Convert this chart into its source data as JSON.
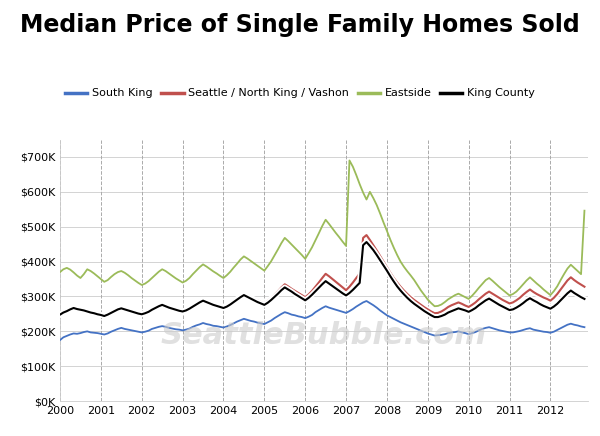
{
  "title": "Median Price of Single Family Homes Sold",
  "title_fontsize": 17,
  "background_color": "#ffffff",
  "watermark": "SeattleBubble.com",
  "ylim": [
    0,
    750000
  ],
  "yticks": [
    0,
    100000,
    200000,
    300000,
    400000,
    500000,
    600000,
    700000
  ],
  "ytick_labels": [
    "$0K",
    "$100K",
    "$200K",
    "$300K",
    "$400K",
    "$500K",
    "$600K",
    "$700K"
  ],
  "xlim_start": 2000.0,
  "xlim_end": 2012.92,
  "xtick_years": [
    2000,
    2001,
    2002,
    2003,
    2004,
    2005,
    2006,
    2007,
    2008,
    2009,
    2010,
    2011,
    2012
  ],
  "colors": {
    "south_king": "#4472c4",
    "seattle": "#c0504d",
    "eastside": "#9bbb59",
    "king_county": "#000000"
  },
  "legend": [
    {
      "label": "South King",
      "color": "#4472c4"
    },
    {
      "label": "Seattle / North King / Vashon",
      "color": "#c0504d"
    },
    {
      "label": "Eastside",
      "color": "#9bbb59"
    },
    {
      "label": "King County",
      "color": "#000000"
    }
  ],
  "south_king": {
    "dates": [
      2000.0,
      2000.083,
      2000.167,
      2000.25,
      2000.333,
      2000.417,
      2000.5,
      2000.583,
      2000.667,
      2000.75,
      2000.833,
      2000.917,
      2001.0,
      2001.083,
      2001.167,
      2001.25,
      2001.333,
      2001.417,
      2001.5,
      2001.583,
      2001.667,
      2001.75,
      2001.833,
      2001.917,
      2002.0,
      2002.083,
      2002.167,
      2002.25,
      2002.333,
      2002.417,
      2002.5,
      2002.583,
      2002.667,
      2002.75,
      2002.833,
      2002.917,
      2003.0,
      2003.083,
      2003.167,
      2003.25,
      2003.333,
      2003.417,
      2003.5,
      2003.583,
      2003.667,
      2003.75,
      2003.833,
      2003.917,
      2004.0,
      2004.083,
      2004.167,
      2004.25,
      2004.333,
      2004.417,
      2004.5,
      2004.583,
      2004.667,
      2004.75,
      2004.833,
      2004.917,
      2005.0,
      2005.083,
      2005.167,
      2005.25,
      2005.333,
      2005.417,
      2005.5,
      2005.583,
      2005.667,
      2005.75,
      2005.833,
      2005.917,
      2006.0,
      2006.083,
      2006.167,
      2006.25,
      2006.333,
      2006.417,
      2006.5,
      2006.583,
      2006.667,
      2006.75,
      2006.833,
      2006.917,
      2007.0,
      2007.083,
      2007.167,
      2007.25,
      2007.333,
      2007.417,
      2007.5,
      2007.583,
      2007.667,
      2007.75,
      2007.833,
      2007.917,
      2008.0,
      2008.083,
      2008.167,
      2008.25,
      2008.333,
      2008.417,
      2008.5,
      2008.583,
      2008.667,
      2008.75,
      2008.833,
      2008.917,
      2009.0,
      2009.083,
      2009.167,
      2009.25,
      2009.333,
      2009.417,
      2009.5,
      2009.583,
      2009.667,
      2009.75,
      2009.833,
      2009.917,
      2010.0,
      2010.083,
      2010.167,
      2010.25,
      2010.333,
      2010.417,
      2010.5,
      2010.583,
      2010.667,
      2010.75,
      2010.833,
      2010.917,
      2011.0,
      2011.083,
      2011.167,
      2011.25,
      2011.333,
      2011.417,
      2011.5,
      2011.583,
      2011.667,
      2011.75,
      2011.833,
      2011.917,
      2012.0,
      2012.083,
      2012.167,
      2012.25,
      2012.333,
      2012.417,
      2012.5,
      2012.583,
      2012.667,
      2012.75,
      2012.833
    ],
    "values": [
      175000,
      183000,
      187000,
      191000,
      194000,
      193000,
      195000,
      198000,
      200000,
      197000,
      196000,
      195000,
      193000,
      191000,
      194000,
      199000,
      203000,
      207000,
      210000,
      207000,
      205000,
      203000,
      201000,
      199000,
      197000,
      199000,
      202000,
      207000,
      210000,
      213000,
      215000,
      213000,
      210000,
      208000,
      206000,
      205000,
      203000,
      205000,
      208000,
      213000,
      217000,
      220000,
      224000,
      221000,
      219000,
      216000,
      215000,
      213000,
      211000,
      214000,
      218000,
      223000,
      228000,
      232000,
      236000,
      233000,
      230000,
      228000,
      225000,
      223000,
      221000,
      226000,
      231000,
      238000,
      244000,
      250000,
      255000,
      252000,
      248000,
      246000,
      243000,
      241000,
      238000,
      242000,
      247000,
      255000,
      261000,
      267000,
      272000,
      268000,
      265000,
      262000,
      259000,
      256000,
      253000,
      258000,
      264000,
      271000,
      277000,
      283000,
      287000,
      281000,
      275000,
      268000,
      260000,
      253000,
      246000,
      241000,
      236000,
      231000,
      226000,
      222000,
      218000,
      214000,
      210000,
      206000,
      202000,
      198000,
      194000,
      191000,
      188000,
      189000,
      190000,
      192000,
      195000,
      197000,
      198000,
      200000,
      197000,
      195000,
      192000,
      195000,
      198000,
      203000,
      207000,
      210000,
      212000,
      209000,
      206000,
      203000,
      201000,
      199000,
      197000,
      197000,
      199000,
      201000,
      204000,
      207000,
      209000,
      205000,
      203000,
      201000,
      199000,
      198000,
      196000,
      199000,
      204000,
      209000,
      214000,
      219000,
      222000,
      219000,
      217000,
      214000,
      212000
    ]
  },
  "seattle": {
    "dates": [
      2000.0,
      2000.083,
      2000.167,
      2000.25,
      2000.333,
      2000.417,
      2000.5,
      2000.583,
      2000.667,
      2000.75,
      2000.833,
      2000.917,
      2001.0,
      2001.083,
      2001.167,
      2001.25,
      2001.333,
      2001.417,
      2001.5,
      2001.583,
      2001.667,
      2001.75,
      2001.833,
      2001.917,
      2002.0,
      2002.083,
      2002.167,
      2002.25,
      2002.333,
      2002.417,
      2002.5,
      2002.583,
      2002.667,
      2002.75,
      2002.833,
      2002.917,
      2003.0,
      2003.083,
      2003.167,
      2003.25,
      2003.333,
      2003.417,
      2003.5,
      2003.583,
      2003.667,
      2003.75,
      2003.833,
      2003.917,
      2004.0,
      2004.083,
      2004.167,
      2004.25,
      2004.333,
      2004.417,
      2004.5,
      2004.583,
      2004.667,
      2004.75,
      2004.833,
      2004.917,
      2005.0,
      2005.083,
      2005.167,
      2005.25,
      2005.333,
      2005.417,
      2005.5,
      2005.583,
      2005.667,
      2005.75,
      2005.833,
      2005.917,
      2006.0,
      2006.083,
      2006.167,
      2006.25,
      2006.333,
      2006.417,
      2006.5,
      2006.583,
      2006.667,
      2006.75,
      2006.833,
      2006.917,
      2007.0,
      2007.083,
      2007.167,
      2007.25,
      2007.333,
      2007.417,
      2007.5,
      2007.583,
      2007.667,
      2007.75,
      2007.833,
      2007.917,
      2008.0,
      2008.083,
      2008.167,
      2008.25,
      2008.333,
      2008.417,
      2008.5,
      2008.583,
      2008.667,
      2008.75,
      2008.833,
      2008.917,
      2009.0,
      2009.083,
      2009.167,
      2009.25,
      2009.333,
      2009.417,
      2009.5,
      2009.583,
      2009.667,
      2009.75,
      2009.833,
      2009.917,
      2010.0,
      2010.083,
      2010.167,
      2010.25,
      2010.333,
      2010.417,
      2010.5,
      2010.583,
      2010.667,
      2010.75,
      2010.833,
      2010.917,
      2011.0,
      2011.083,
      2011.167,
      2011.25,
      2011.333,
      2011.417,
      2011.5,
      2011.583,
      2011.667,
      2011.75,
      2011.833,
      2011.917,
      2012.0,
      2012.083,
      2012.167,
      2012.25,
      2012.333,
      2012.417,
      2012.5,
      2012.583,
      2012.667,
      2012.75,
      2012.833
    ],
    "values": [
      248000,
      255000,
      260000,
      265000,
      268000,
      265000,
      262000,
      260000,
      257000,
      254000,
      252000,
      249000,
      247000,
      244000,
      248000,
      253000,
      258000,
      263000,
      266000,
      263000,
      261000,
      258000,
      255000,
      252000,
      250000,
      253000,
      257000,
      263000,
      268000,
      273000,
      276000,
      272000,
      269000,
      266000,
      263000,
      260000,
      258000,
      261000,
      265000,
      272000,
      278000,
      284000,
      289000,
      285000,
      281000,
      277000,
      274000,
      271000,
      268000,
      272000,
      278000,
      286000,
      293000,
      301000,
      307000,
      302000,
      297000,
      292000,
      288000,
      284000,
      280000,
      287000,
      295000,
      305000,
      315000,
      326000,
      335000,
      329000,
      322000,
      316000,
      310000,
      304000,
      298000,
      306000,
      316000,
      328000,
      340000,
      353000,
      365000,
      358000,
      350000,
      342000,
      334000,
      326000,
      318000,
      328000,
      340000,
      353000,
      366000,
      468000,
      476000,
      462000,
      447000,
      432000,
      416000,
      400000,
      384000,
      368000,
      353000,
      340000,
      328000,
      317000,
      307000,
      298000,
      290000,
      283000,
      276000,
      269000,
      263000,
      257000,
      252000,
      253000,
      257000,
      263000,
      270000,
      275000,
      279000,
      283000,
      279000,
      274000,
      270000,
      276000,
      283000,
      292000,
      300000,
      308000,
      314000,
      308000,
      302000,
      296000,
      290000,
      285000,
      280000,
      283000,
      289000,
      296000,
      305000,
      313000,
      320000,
      313000,
      307000,
      302000,
      297000,
      293000,
      288000,
      296000,
      307000,
      320000,
      333000,
      346000,
      355000,
      347000,
      340000,
      334000,
      328000
    ]
  },
  "eastside": {
    "dates": [
      2000.0,
      2000.083,
      2000.167,
      2000.25,
      2000.333,
      2000.417,
      2000.5,
      2000.583,
      2000.667,
      2000.75,
      2000.833,
      2000.917,
      2001.0,
      2001.083,
      2001.167,
      2001.25,
      2001.333,
      2001.417,
      2001.5,
      2001.583,
      2001.667,
      2001.75,
      2001.833,
      2001.917,
      2002.0,
      2002.083,
      2002.167,
      2002.25,
      2002.333,
      2002.417,
      2002.5,
      2002.583,
      2002.667,
      2002.75,
      2002.833,
      2002.917,
      2003.0,
      2003.083,
      2003.167,
      2003.25,
      2003.333,
      2003.417,
      2003.5,
      2003.583,
      2003.667,
      2003.75,
      2003.833,
      2003.917,
      2004.0,
      2004.083,
      2004.167,
      2004.25,
      2004.333,
      2004.417,
      2004.5,
      2004.583,
      2004.667,
      2004.75,
      2004.833,
      2004.917,
      2005.0,
      2005.083,
      2005.167,
      2005.25,
      2005.333,
      2005.417,
      2005.5,
      2005.583,
      2005.667,
      2005.75,
      2005.833,
      2005.917,
      2006.0,
      2006.083,
      2006.167,
      2006.25,
      2006.333,
      2006.417,
      2006.5,
      2006.583,
      2006.667,
      2006.75,
      2006.833,
      2006.917,
      2007.0,
      2007.083,
      2007.167,
      2007.25,
      2007.333,
      2007.417,
      2007.5,
      2007.583,
      2007.667,
      2007.75,
      2007.833,
      2007.917,
      2008.0,
      2008.083,
      2008.167,
      2008.25,
      2008.333,
      2008.417,
      2008.5,
      2008.583,
      2008.667,
      2008.75,
      2008.833,
      2008.917,
      2009.0,
      2009.083,
      2009.167,
      2009.25,
      2009.333,
      2009.417,
      2009.5,
      2009.583,
      2009.667,
      2009.75,
      2009.833,
      2009.917,
      2010.0,
      2010.083,
      2010.167,
      2010.25,
      2010.333,
      2010.417,
      2010.5,
      2010.583,
      2010.667,
      2010.75,
      2010.833,
      2010.917,
      2011.0,
      2011.083,
      2011.167,
      2011.25,
      2011.333,
      2011.417,
      2011.5,
      2011.583,
      2011.667,
      2011.75,
      2011.833,
      2011.917,
      2012.0,
      2012.083,
      2012.167,
      2012.25,
      2012.333,
      2012.417,
      2012.5,
      2012.583,
      2012.667,
      2012.75,
      2012.833
    ],
    "values": [
      370000,
      378000,
      382000,
      377000,
      369000,
      360000,
      353000,
      364000,
      378000,
      373000,
      366000,
      358000,
      350000,
      342000,
      347000,
      356000,
      364000,
      370000,
      373000,
      368000,
      361000,
      353000,
      346000,
      339000,
      333000,
      337000,
      344000,
      353000,
      362000,
      371000,
      378000,
      373000,
      366000,
      359000,
      352000,
      346000,
      340000,
      345000,
      353000,
      364000,
      374000,
      384000,
      392000,
      386000,
      379000,
      372000,
      366000,
      359000,
      353000,
      361000,
      371000,
      383000,
      394000,
      406000,
      415000,
      409000,
      402000,
      395000,
      388000,
      381000,
      374000,
      387000,
      401000,
      418000,
      435000,
      453000,
      468000,
      459000,
      449000,
      439000,
      429000,
      419000,
      408000,
      424000,
      441000,
      461000,
      481000,
      502000,
      520000,
      508000,
      495000,
      482000,
      470000,
      457000,
      445000,
      690000,
      672000,
      648000,
      622000,
      598000,
      578000,
      600000,
      582000,
      562000,
      538000,
      512000,
      488000,
      463000,
      440000,
      419000,
      400000,
      385000,
      372000,
      360000,
      347000,
      332000,
      317000,
      304000,
      291000,
      281000,
      272000,
      273000,
      277000,
      284000,
      292000,
      298000,
      304000,
      308000,
      303000,
      298000,
      293000,
      302000,
      313000,
      325000,
      336000,
      347000,
      353000,
      345000,
      336000,
      327000,
      319000,
      311000,
      303000,
      307000,
      314000,
      324000,
      335000,
      346000,
      355000,
      346000,
      337000,
      329000,
      320000,
      312000,
      304000,
      315000,
      329000,
      347000,
      364000,
      380000,
      391000,
      382000,
      373000,
      364000,
      546000
    ]
  },
  "king_county": {
    "dates": [
      2000.0,
      2000.083,
      2000.167,
      2000.25,
      2000.333,
      2000.417,
      2000.5,
      2000.583,
      2000.667,
      2000.75,
      2000.833,
      2000.917,
      2001.0,
      2001.083,
      2001.167,
      2001.25,
      2001.333,
      2001.417,
      2001.5,
      2001.583,
      2001.667,
      2001.75,
      2001.833,
      2001.917,
      2002.0,
      2002.083,
      2002.167,
      2002.25,
      2002.333,
      2002.417,
      2002.5,
      2002.583,
      2002.667,
      2002.75,
      2002.833,
      2002.917,
      2003.0,
      2003.083,
      2003.167,
      2003.25,
      2003.333,
      2003.417,
      2003.5,
      2003.583,
      2003.667,
      2003.75,
      2003.833,
      2003.917,
      2004.0,
      2004.083,
      2004.167,
      2004.25,
      2004.333,
      2004.417,
      2004.5,
      2004.583,
      2004.667,
      2004.75,
      2004.833,
      2004.917,
      2005.0,
      2005.083,
      2005.167,
      2005.25,
      2005.333,
      2005.417,
      2005.5,
      2005.583,
      2005.667,
      2005.75,
      2005.833,
      2005.917,
      2006.0,
      2006.083,
      2006.167,
      2006.25,
      2006.333,
      2006.417,
      2006.5,
      2006.583,
      2006.667,
      2006.75,
      2006.833,
      2006.917,
      2007.0,
      2007.083,
      2007.167,
      2007.25,
      2007.333,
      2007.417,
      2007.5,
      2007.583,
      2007.667,
      2007.75,
      2007.833,
      2007.917,
      2008.0,
      2008.083,
      2008.167,
      2008.25,
      2008.333,
      2008.417,
      2008.5,
      2008.583,
      2008.667,
      2008.75,
      2008.833,
      2008.917,
      2009.0,
      2009.083,
      2009.167,
      2009.25,
      2009.333,
      2009.417,
      2009.5,
      2009.583,
      2009.667,
      2009.75,
      2009.833,
      2009.917,
      2010.0,
      2010.083,
      2010.167,
      2010.25,
      2010.333,
      2010.417,
      2010.5,
      2010.583,
      2010.667,
      2010.75,
      2010.833,
      2010.917,
      2011.0,
      2011.083,
      2011.167,
      2011.25,
      2011.333,
      2011.417,
      2011.5,
      2011.583,
      2011.667,
      2011.75,
      2011.833,
      2011.917,
      2012.0,
      2012.083,
      2012.167,
      2012.25,
      2012.333,
      2012.417,
      2012.5,
      2012.583,
      2012.667,
      2012.75,
      2012.833
    ],
    "values": [
      248000,
      254000,
      258000,
      263000,
      267000,
      264000,
      262000,
      260000,
      257000,
      254000,
      252000,
      249000,
      247000,
      244000,
      248000,
      253000,
      258000,
      263000,
      266000,
      263000,
      260000,
      257000,
      254000,
      251000,
      249000,
      252000,
      256000,
      262000,
      267000,
      272000,
      276000,
      272000,
      268000,
      265000,
      262000,
      259000,
      257000,
      260000,
      265000,
      271000,
      277000,
      283000,
      288000,
      284000,
      280000,
      276000,
      273000,
      270000,
      267000,
      271000,
      277000,
      284000,
      291000,
      298000,
      304000,
      299000,
      294000,
      289000,
      284000,
      280000,
      276000,
      282000,
      290000,
      299000,
      308000,
      318000,
      326000,
      320000,
      314000,
      307000,
      301000,
      295000,
      289000,
      296000,
      305000,
      315000,
      325000,
      335000,
      344000,
      337000,
      330000,
      323000,
      316000,
      309000,
      303000,
      310000,
      319000,
      329000,
      339000,
      447000,
      456000,
      445000,
      433000,
      419000,
      404000,
      389000,
      374000,
      358000,
      343000,
      329000,
      317000,
      306000,
      296000,
      287000,
      279000,
      272000,
      265000,
      258000,
      252000,
      246000,
      241000,
      241000,
      244000,
      248000,
      254000,
      258000,
      262000,
      266000,
      263000,
      260000,
      256000,
      261000,
      267000,
      275000,
      282000,
      289000,
      294000,
      288000,
      282000,
      276000,
      271000,
      266000,
      261000,
      263000,
      268000,
      274000,
      281000,
      289000,
      295000,
      289000,
      284000,
      278000,
      273000,
      269000,
      265000,
      271000,
      279000,
      289000,
      299000,
      309000,
      317000,
      310000,
      304000,
      298000,
      293000
    ]
  }
}
